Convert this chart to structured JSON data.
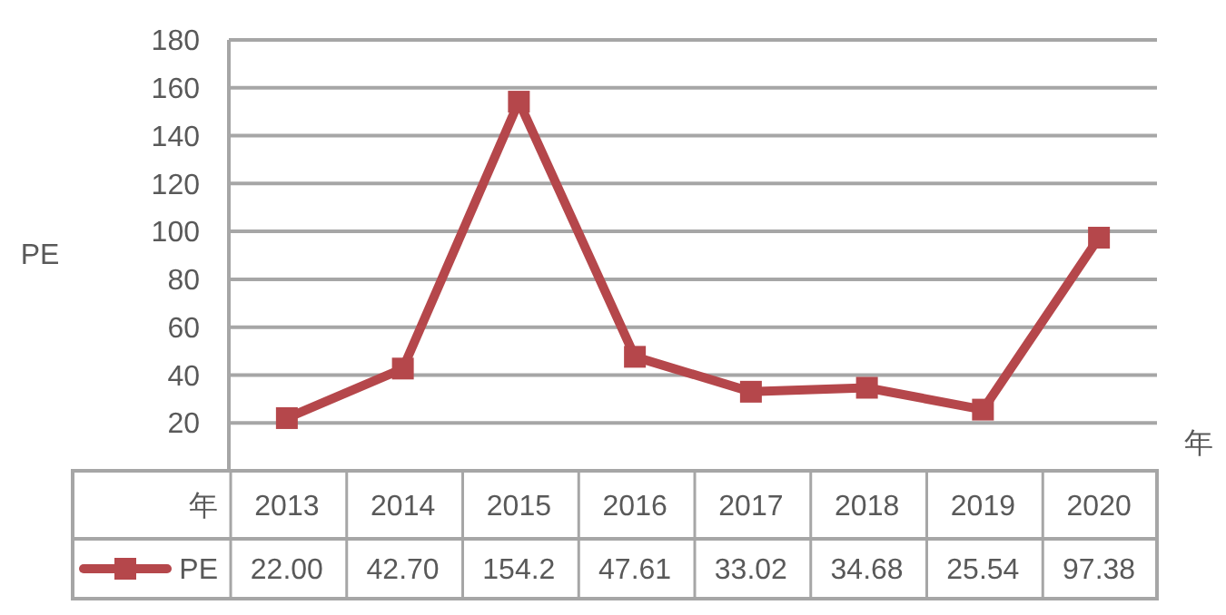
{
  "chart_data": {
    "type": "line",
    "xlabel": "年",
    "ylabel": "PE",
    "categories": [
      "2013",
      "2014",
      "2015",
      "2016",
      "2017",
      "2018",
      "2019",
      "2020"
    ],
    "series": [
      {
        "name": "PE",
        "color": "#b5474b",
        "values": [
          22.0,
          42.7,
          154.2,
          47.61,
          33.02,
          34.68,
          25.54,
          97.38
        ],
        "value_labels": [
          "22.00",
          "42.70",
          "154.2",
          "47.61",
          "33.02",
          "34.68",
          "25.54",
          "97.38"
        ]
      }
    ],
    "ylim": [
      0,
      180
    ],
    "yticks": [
      20,
      40,
      60,
      80,
      100,
      120,
      140,
      160,
      180
    ],
    "grid": "y",
    "marker": "square",
    "line_style": "solid",
    "legend": "bottom",
    "data_labels": true
  }
}
